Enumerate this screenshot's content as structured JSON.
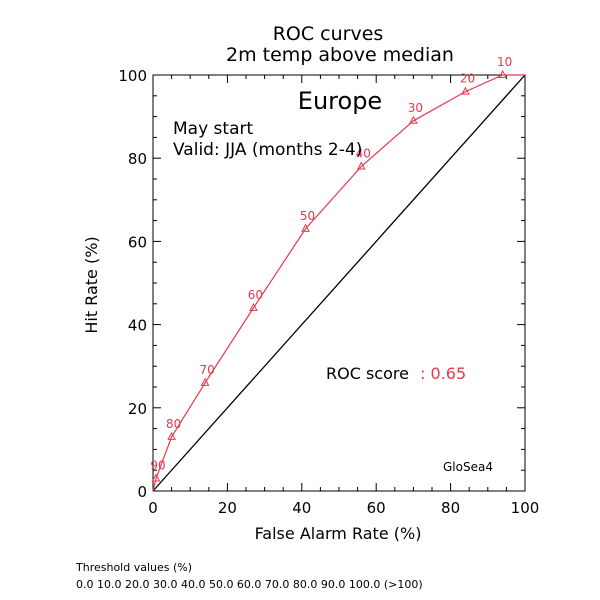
{
  "chart_data": {
    "type": "line",
    "title": "ROC curves",
    "subtitle": "2m temp above median",
    "xlabel": "False Alarm Rate (%)",
    "ylabel": "Hit Rate (%)",
    "xlim": [
      0,
      100
    ],
    "ylim": [
      0,
      100
    ],
    "xticks": [
      "0",
      "20",
      "40",
      "60",
      "80",
      "100"
    ],
    "yticks": [
      "0",
      "20",
      "40",
      "60",
      "80",
      "100"
    ],
    "region": "Europe",
    "start_label": "May start",
    "valid_label": "Valid: JJA (months 2-4)",
    "score_label": "ROC score",
    "score_value": ": 0.65",
    "model_label": "GloSea4",
    "colors": {
      "curve": "#e8384f",
      "diagonal": "#000000",
      "text": "#000000"
    },
    "diagonal": {
      "x": [
        0,
        100
      ],
      "y": [
        0,
        100
      ]
    },
    "series": [
      {
        "x": [
          0,
          0.8,
          5,
          14,
          27,
          41,
          56,
          70,
          84,
          94,
          100
        ],
        "y": [
          0,
          3,
          13,
          26,
          44,
          63,
          78,
          89,
          96,
          100,
          100
        ],
        "point_labels": [
          "",
          "90",
          "80",
          "70",
          "60",
          "50",
          "40",
          "30",
          "20",
          "10",
          ""
        ]
      }
    ]
  },
  "footer": {
    "heading": "Threshold values (%)",
    "values": "0.0 10.0 20.0 30.0 40.0 50.0 60.0 70.0 80.0 90.0 100.0 (>100)"
  }
}
